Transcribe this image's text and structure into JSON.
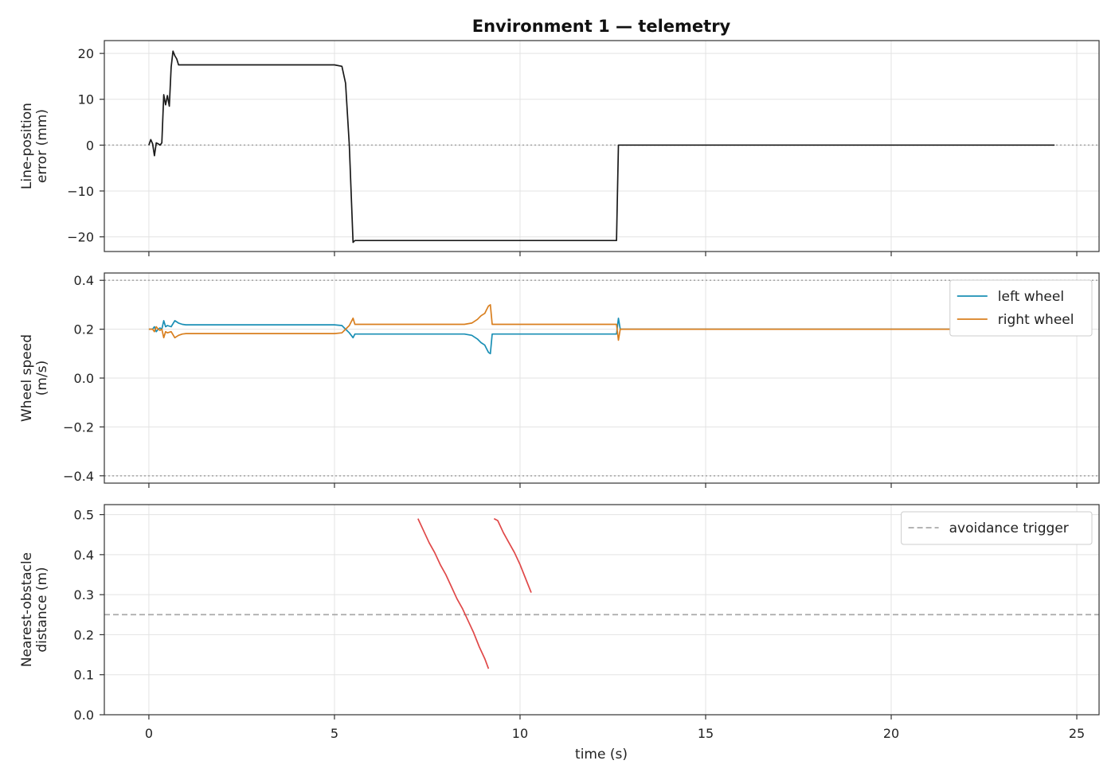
{
  "chart_data": {
    "title": "Environment 1 — telemetry",
    "xlabel": "time (s)",
    "xlim": [
      -1.2,
      25.6
    ],
    "xticks": [
      0,
      5,
      10,
      15,
      20,
      25
    ],
    "panels": [
      {
        "type": "line",
        "ylabel_lines": [
          "Line-position",
          "error (mm)"
        ],
        "ylim": [
          -23.2,
          22.8
        ],
        "yticks": [
          20,
          10,
          0,
          -10,
          -20
        ],
        "ytick_labels": [
          "20",
          "10",
          "0",
          "−10",
          "−20"
        ],
        "reference_lines": [
          {
            "y": 0,
            "style": "dotted",
            "color": "#aaaaaa"
          }
        ],
        "series": [
          {
            "color": "#1a1a1a",
            "x": [
              0,
              0.05,
              0.1,
              0.15,
              0.2,
              0.25,
              0.3,
              0.35,
              0.4,
              0.45,
              0.5,
              0.55,
              0.6,
              0.65,
              0.7,
              0.75,
              0.8,
              0.9,
              1.0,
              2.0,
              3.0,
              4.0,
              5.0,
              5.2,
              5.3,
              5.4,
              5.5,
              5.55,
              5.6,
              6.0,
              8.0,
              10.0,
              12.0,
              12.6,
              12.65,
              12.7,
              15.0,
              20.0,
              24.4
            ],
            "y": [
              0,
              1.2,
              0.3,
              -2.3,
              0.5,
              0.3,
              0,
              0.5,
              11,
              8.8,
              10.8,
              8.5,
              17,
              20.5,
              19.5,
              18.8,
              17.5,
              17.5,
              17.5,
              17.5,
              17.5,
              17.5,
              17.5,
              17.2,
              13.5,
              0,
              -21.2,
              -20.8,
              -20.8,
              -20.8,
              -20.8,
              -20.8,
              -20.8,
              -20.8,
              0,
              0,
              0,
              0,
              0
            ]
          }
        ]
      },
      {
        "type": "line",
        "ylabel_lines": [
          "Wheel speed",
          "(m/s)"
        ],
        "ylim": [
          -0.43,
          0.43
        ],
        "yticks": [
          0.4,
          0.2,
          0.0,
          -0.2,
          -0.4
        ],
        "ytick_labels": [
          "0.4",
          "0.2",
          "0.0",
          "−0.2",
          "−0.4"
        ],
        "reference_lines": [
          {
            "y": 0.4,
            "style": "dotted",
            "color": "#aaaaaa"
          },
          {
            "y": -0.4,
            "style": "dotted",
            "color": "#aaaaaa"
          }
        ],
        "legend": {
          "position": "top-right",
          "entries": [
            {
              "label": "left wheel",
              "color": "#1a8fb5"
            },
            {
              "label": "right wheel",
              "color": "#d97f1f"
            }
          ]
        },
        "series": [
          {
            "name": "left wheel",
            "color": "#1a8fb5",
            "x": [
              0,
              0.1,
              0.15,
              0.2,
              0.25,
              0.3,
              0.35,
              0.4,
              0.45,
              0.5,
              0.6,
              0.7,
              0.8,
              0.9,
              1.0,
              2.0,
              4.0,
              5.0,
              5.2,
              5.3,
              5.4,
              5.5,
              5.55,
              5.6,
              7.0,
              8.5,
              8.7,
              8.85,
              8.95,
              9.05,
              9.1,
              9.15,
              9.2,
              9.25,
              10.0,
              12.5,
              12.6,
              12.65,
              12.7,
              12.75,
              15.0,
              24.4
            ],
            "y": [
              0.2,
              0.2,
              0.21,
              0.19,
              0.2,
              0.205,
              0.2,
              0.235,
              0.21,
              0.215,
              0.21,
              0.235,
              0.225,
              0.22,
              0.218,
              0.218,
              0.218,
              0.218,
              0.215,
              0.2,
              0.185,
              0.165,
              0.18,
              0.18,
              0.18,
              0.18,
              0.175,
              0.16,
              0.145,
              0.135,
              0.12,
              0.105,
              0.1,
              0.18,
              0.18,
              0.18,
              0.18,
              0.245,
              0.2,
              0.2,
              0.2,
              0.2
            ]
          },
          {
            "name": "right wheel",
            "color": "#d97f1f",
            "x": [
              0,
              0.1,
              0.15,
              0.2,
              0.25,
              0.3,
              0.35,
              0.4,
              0.45,
              0.5,
              0.6,
              0.7,
              0.8,
              0.9,
              1.0,
              2.0,
              4.0,
              5.0,
              5.2,
              5.3,
              5.4,
              5.5,
              5.55,
              5.6,
              7.0,
              8.5,
              8.7,
              8.85,
              8.95,
              9.05,
              9.1,
              9.15,
              9.2,
              9.25,
              10.0,
              12.5,
              12.6,
              12.65,
              12.7,
              12.75,
              15.0,
              24.4
            ],
            "y": [
              0.2,
              0.2,
              0.19,
              0.21,
              0.2,
              0.195,
              0.2,
              0.165,
              0.19,
              0.185,
              0.19,
              0.165,
              0.175,
              0.18,
              0.182,
              0.182,
              0.182,
              0.182,
              0.185,
              0.2,
              0.215,
              0.245,
              0.22,
              0.22,
              0.22,
              0.22,
              0.225,
              0.24,
              0.255,
              0.265,
              0.28,
              0.295,
              0.3,
              0.22,
              0.22,
              0.22,
              0.22,
              0.155,
              0.2,
              0.2,
              0.2,
              0.2
            ]
          }
        ]
      },
      {
        "type": "line",
        "ylabel_lines": [
          "Nearest-obstacle",
          "distance (m)"
        ],
        "ylim": [
          0.0,
          0.525
        ],
        "yticks": [
          0.5,
          0.4,
          0.3,
          0.2,
          0.1,
          0.0
        ],
        "ytick_labels": [
          "0.5",
          "0.4",
          "0.3",
          "0.2",
          "0.1",
          "0.0"
        ],
        "reference_lines": [
          {
            "y": 0.25,
            "style": "dashed",
            "color": "#aaaaaa",
            "label": "avoidance trigger"
          }
        ],
        "legend": {
          "position": "top-right",
          "entries": [
            {
              "label": "avoidance trigger",
              "color": "#aaaaaa",
              "style": "dashed"
            }
          ]
        },
        "series": [
          {
            "color": "#e04848",
            "x": [
              7.25,
              7.4,
              7.55,
              7.7,
              7.85,
              8.0,
              8.15,
              8.3,
              8.45,
              8.6,
              8.75,
              8.9,
              9.05,
              9.15
            ],
            "y": [
              0.49,
              0.46,
              0.43,
              0.405,
              0.375,
              0.35,
              0.32,
              0.29,
              0.265,
              0.235,
              0.205,
              0.17,
              0.14,
              0.115
            ]
          },
          {
            "color": "#e04848",
            "x": [
              9.3,
              9.4,
              9.55,
              9.7,
              9.85,
              10.0,
              10.15,
              10.3
            ],
            "y": [
              0.49,
              0.485,
              0.455,
              0.43,
              0.405,
              0.375,
              0.34,
              0.305
            ]
          }
        ]
      }
    ]
  }
}
